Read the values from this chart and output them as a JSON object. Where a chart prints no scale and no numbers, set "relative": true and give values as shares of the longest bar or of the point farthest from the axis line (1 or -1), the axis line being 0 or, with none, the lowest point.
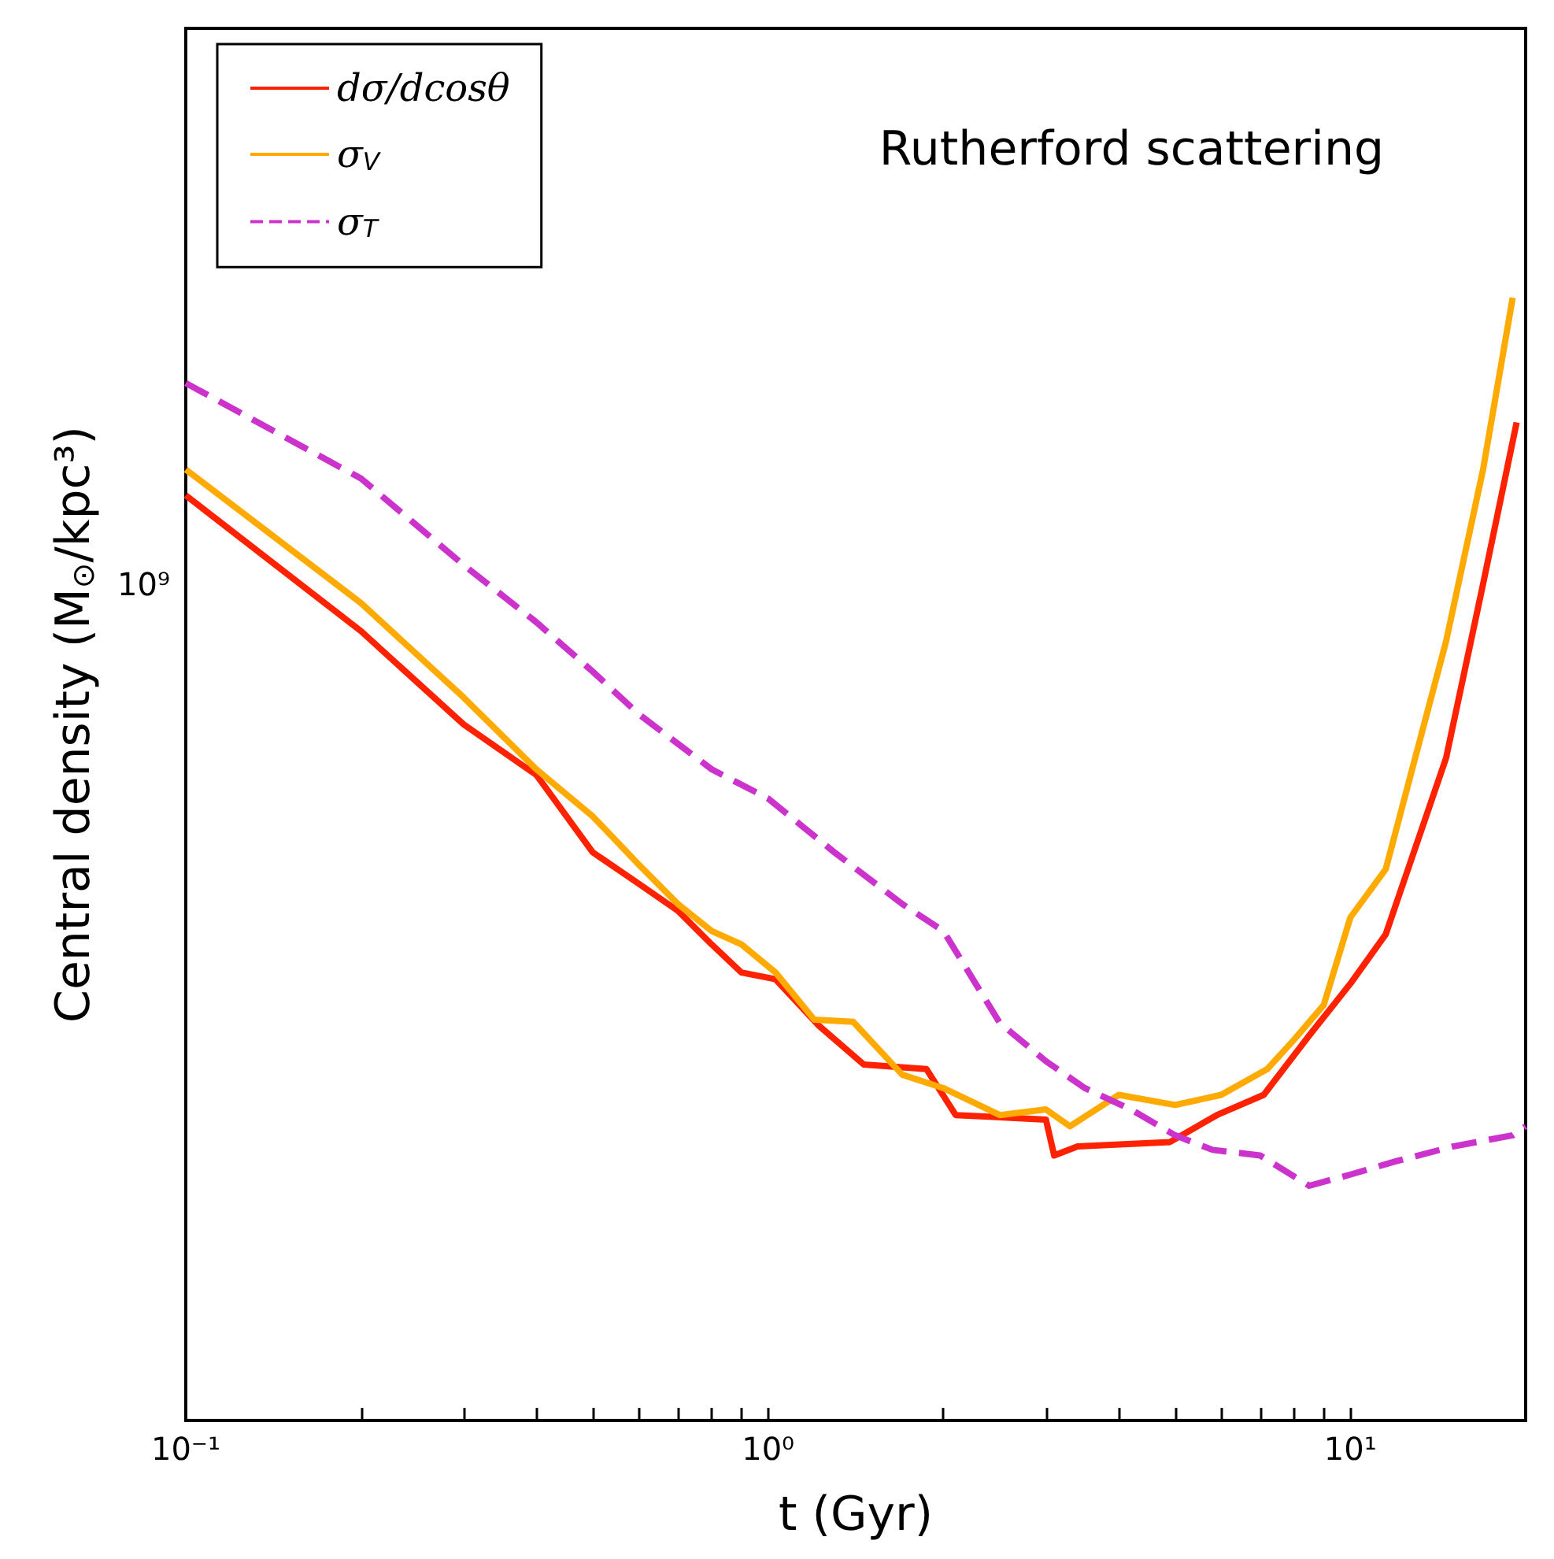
{
  "chart_data": {
    "type": "line",
    "xlabel": "t (Gyr)",
    "ylabel": "Central density (M$_{⊙}$/kpc³)",
    "annotations": [
      "Rutherford scattering",
      "10⁹"
    ],
    "relative": true,
    "log": "x",
    "grid": false,
    "legend": "top left",
    "marker": "none",
    "xlim": [
      0.1,
      20
    ],
    "xticks": [
      {
        "value": 0.1,
        "label": "10⁻¹"
      },
      {
        "value": 0.2,
        "label": null
      },
      {
        "value": 0.3,
        "label": null
      },
      {
        "value": 0.4,
        "label": null
      },
      {
        "value": 0.5,
        "label": null
      },
      {
        "value": 0.6,
        "label": null
      },
      {
        "value": 0.7,
        "label": null
      },
      {
        "value": 0.8,
        "label": null
      },
      {
        "value": 0.9,
        "label": null
      },
      {
        "value": 1,
        "label": "10⁰"
      },
      {
        "value": 2,
        "label": null
      },
      {
        "value": 3,
        "label": null
      },
      {
        "value": 4,
        "label": null
      },
      {
        "value": 5,
        "label": null
      },
      {
        "value": 6,
        "label": null
      },
      {
        "value": 7,
        "label": null
      },
      {
        "value": 8,
        "label": null
      },
      {
        "value": 9,
        "label": null
      },
      {
        "value": 10,
        "label": "10¹"
      }
    ],
    "series": [
      {
        "name": "dσ/dcosθ",
        "color": "#ff2200",
        "line_style": "solid",
        "x": [
          0.1,
          0.2,
          0.3,
          0.4,
          0.5,
          0.6,
          0.7,
          0.8,
          0.9,
          1.03,
          1.22,
          1.46,
          1.87,
          2.1,
          3.0,
          3.1,
          3.4,
          4.9,
          5.9,
          7.1,
          8.5,
          10,
          11.5,
          14.6,
          16.9,
          19.3
        ],
        "values": [
          0.824,
          0.703,
          0.62,
          0.575,
          0.506,
          0.478,
          0.454,
          0.424,
          0.399,
          0.393,
          0.352,
          0.317,
          0.313,
          0.272,
          0.268,
          0.236,
          0.244,
          0.248,
          0.272,
          0.29,
          0.343,
          0.389,
          0.433,
          0.59,
          0.745,
          0.889
        ]
      },
      {
        "name": "σ$_{V}$",
        "color": "#ffaa00",
        "line_style": "solid",
        "x": [
          0.1,
          0.2,
          0.3,
          0.4,
          0.5,
          0.6,
          0.7,
          0.8,
          0.9,
          1.03,
          1.2,
          1.4,
          1.7,
          2.0,
          2.5,
          3.0,
          3.3,
          4.0,
          5,
          6,
          7.2,
          8,
          9,
          10,
          11.5,
          14.6,
          16.9,
          19
        ],
        "values": [
          0.847,
          0.728,
          0.644,
          0.58,
          0.538,
          0.495,
          0.46,
          0.436,
          0.424,
          0.399,
          0.357,
          0.355,
          0.308,
          0.296,
          0.272,
          0.277,
          0.262,
          0.29,
          0.281,
          0.29,
          0.313,
          0.339,
          0.37,
          0.448,
          0.491,
          0.694,
          0.847,
          1.0
        ]
      },
      {
        "name": "σ$_{T}$",
        "color": "#cc33cc",
        "line_style": "dashed",
        "x": [
          0.1,
          0.2,
          0.3,
          0.4,
          0.5,
          0.6,
          0.8,
          1.0,
          1.3,
          1.7,
          2.0,
          2.5,
          3.0,
          3.5,
          4.2,
          5,
          5.8,
          7,
          8.5,
          10,
          12,
          15,
          19,
          20
        ],
        "values": [
          0.924,
          0.839,
          0.762,
          0.711,
          0.667,
          0.629,
          0.58,
          0.554,
          0.506,
          0.46,
          0.436,
          0.354,
          0.32,
          0.296,
          0.277,
          0.254,
          0.241,
          0.236,
          0.209,
          0.219,
          0.231,
          0.244,
          0.254,
          0.262
        ]
      }
    ]
  }
}
